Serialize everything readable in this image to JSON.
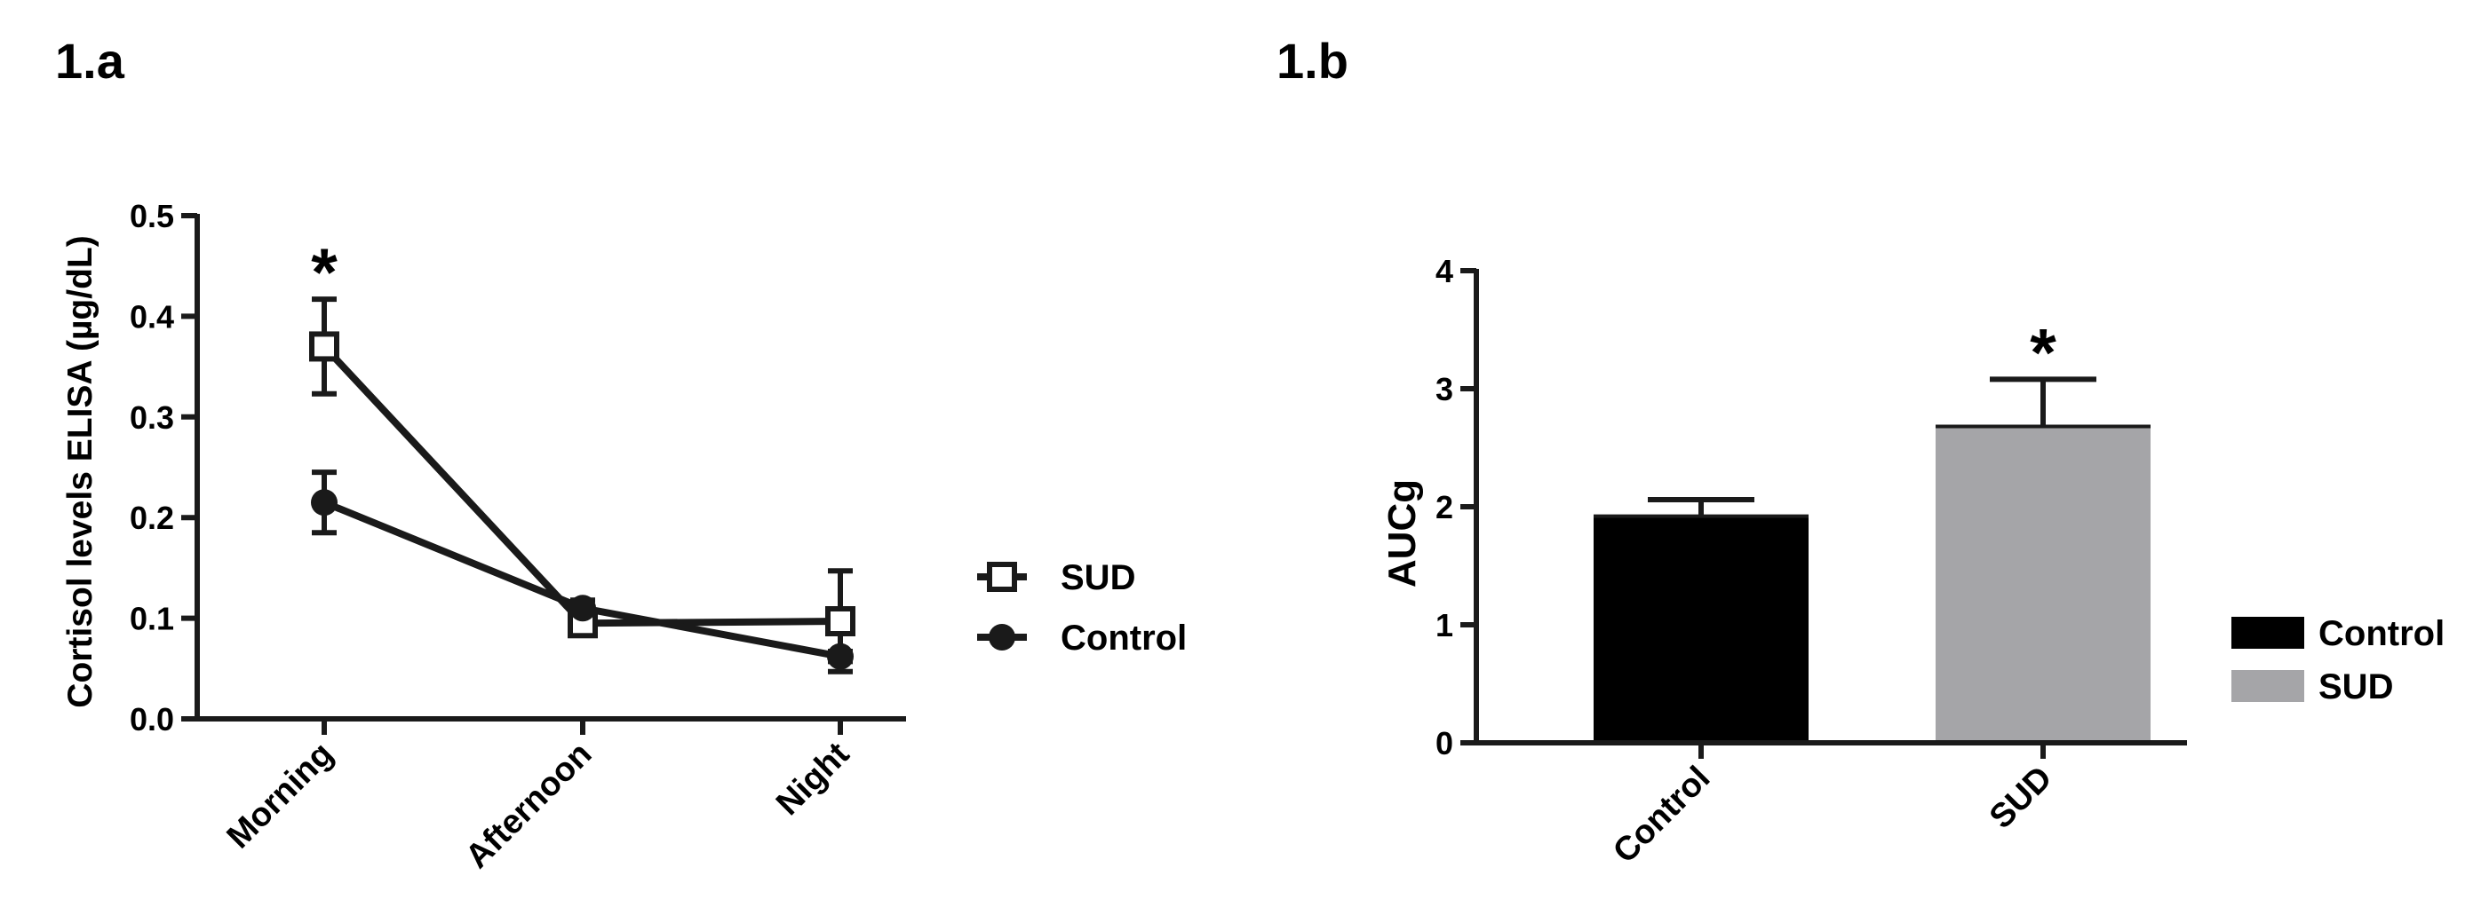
{
  "chart_data": [
    {
      "panel_label": "1.a",
      "type": "line",
      "categories": [
        "Morning",
        "Afternoon",
        "Night"
      ],
      "ylabel": "Cortisol levels ELISA (µg/dL)",
      "ylim": [
        0,
        0.5
      ],
      "yticks": [
        "0.0",
        "0.1",
        "0.2",
        "0.3",
        "0.4",
        "0.5"
      ],
      "grid": false,
      "legend_position": "right",
      "series": [
        {
          "name": "SUD",
          "marker": "open-square",
          "values": [
            0.37,
            0.095,
            0.097
          ],
          "errors": [
            0.047,
            0.012,
            0.05
          ]
        },
        {
          "name": "Control",
          "marker": "filled-circle",
          "values": [
            0.215,
            0.11,
            0.062
          ],
          "errors": [
            0.03,
            0.008,
            0.005
          ]
        }
      ],
      "annotations": [
        {
          "text": "*",
          "category": "Morning"
        }
      ]
    },
    {
      "panel_label": "1.b",
      "type": "bar",
      "categories": [
        "Control",
        "SUD"
      ],
      "values": [
        1.92,
        2.68
      ],
      "errors": [
        0.14,
        0.4
      ],
      "colors": [
        "#000000",
        "#a5a5a8"
      ],
      "ylabel": "AUCg",
      "ylim": [
        0,
        4
      ],
      "yticks": [
        "0",
        "1",
        "2",
        "3",
        "4"
      ],
      "grid": false,
      "legend_position": "right",
      "legend": [
        {
          "name": "Control",
          "color": "#000000"
        },
        {
          "name": "SUD",
          "color": "#a5a5a8"
        }
      ],
      "annotations": [
        {
          "text": "*",
          "category": "SUD"
        }
      ]
    }
  ]
}
